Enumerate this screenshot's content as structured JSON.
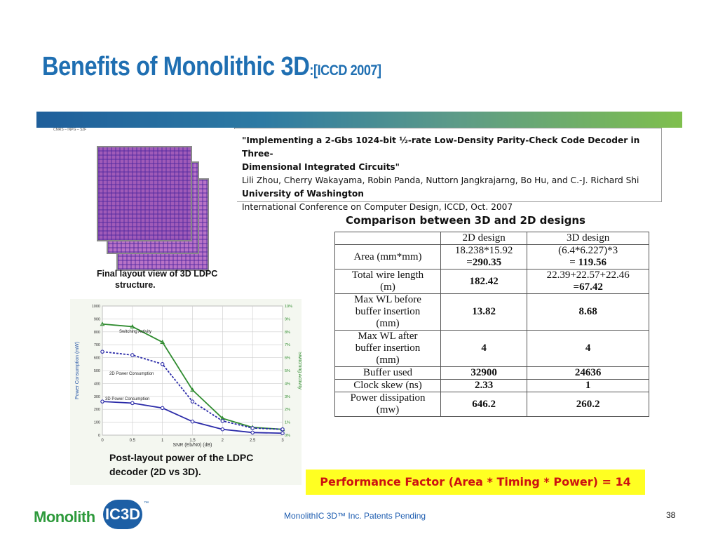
{
  "slide": {
    "title_main": "Benefits of Monolithic 3D",
    "title_suffix": ":[ICCD 2007]",
    "tiny_text": "CMRS – INPG – S2F",
    "footer": "MonolithIC 3D™ Inc. Patents Pending",
    "page_number": "38",
    "logo_word": "Monolith",
    "logo_badge": "IC3D",
    "logo_tm": "™"
  },
  "paper": {
    "line1": "\"Implementing a 2-Gbs 1024-bit ½-rate Low-Density Parity-Check Code Decoder in Three-",
    "line2": "Dimensional Integrated Circuits\"",
    "authors": "Lili Zhou, Cherry Wakayama, Robin Panda, Nuttorn Jangkrajarng, Bo Hu, and C.-J. Richard Shi",
    "affiliation": "University of Washington",
    "venue": "International Conference on Computer Design, ICCD, Oct. 2007"
  },
  "layout_caption": {
    "line1": "Final layout view of 3D LDPC",
    "line2": "structure."
  },
  "plot_caption": {
    "line1": "Post-layout power of the LDPC",
    "line2": "decoder (2D vs 3D)."
  },
  "table": {
    "title": "Comparison between 3D and 2D designs",
    "headers": [
      "",
      "2D design",
      "3D design"
    ],
    "rows": [
      {
        "label": [
          "Area (mm*mm)"
        ],
        "d2": [
          "18.238*15.92",
          "=290.35"
        ],
        "d3": [
          "(6.4*6.227)*3",
          "= 119.56"
        ]
      },
      {
        "label": [
          "Total wire length",
          "(m)"
        ],
        "d2": [
          "182.42"
        ],
        "d3": [
          "22.39+22.57+22.46",
          "=67.42"
        ]
      },
      {
        "label": [
          "Max WL before",
          "buffer insertion",
          "(mm)"
        ],
        "d2": [
          "13.82"
        ],
        "d3": [
          "8.68"
        ]
      },
      {
        "label": [
          "Max WL after",
          "buffer insertion",
          "(mm)"
        ],
        "d2": [
          "4"
        ],
        "d3": [
          "4"
        ]
      },
      {
        "label": [
          "Buffer used"
        ],
        "d2": [
          "32900"
        ],
        "d3": [
          "24636"
        ]
      },
      {
        "label": [
          "Clock skew (ns)"
        ],
        "d2": [
          "2.33"
        ],
        "d3": [
          "1"
        ]
      },
      {
        "label": [
          "Power dissipation",
          "(mw)"
        ],
        "d2": [
          "646.2"
        ],
        "d3": [
          "260.2"
        ]
      }
    ]
  },
  "performance_factor": "Performance Factor (Area * Timing * Power)  =  14",
  "chart_data": {
    "type": "line",
    "xlabel": "SNR (Eb/N0) (dB)",
    "ylabel": "Power Consumption (mW)",
    "y2label": "Switching Activity",
    "xlim": [
      0,
      3
    ],
    "ylim": [
      0,
      1000
    ],
    "y2lim": [
      0,
      10
    ],
    "x_ticks": [
      "0",
      "0.5",
      "1",
      "1.5",
      "2",
      "2.5",
      "3"
    ],
    "y_ticks": [
      "0",
      "100",
      "200",
      "300",
      "400",
      "500",
      "600",
      "700",
      "800",
      "900",
      "1000"
    ],
    "y2_ticks": [
      "0%",
      "1%",
      "2%",
      "3%",
      "4%",
      "5%",
      "6%",
      "7%",
      "8%",
      "9%",
      "10%"
    ],
    "grid": true,
    "series": [
      {
        "name": "Switching Activity",
        "axis": "right",
        "color": "#2e8b2e",
        "x": [
          0,
          0.5,
          1,
          1.5,
          2,
          2.5,
          3
        ],
        "y": [
          8.6,
          8.4,
          7.2,
          3.5,
          1.3,
          0.6,
          0.45
        ]
      },
      {
        "name": "2D Power Consumption",
        "axis": "left",
        "color": "#2a2aa8",
        "dashed": true,
        "x": [
          0,
          0.5,
          1,
          1.5,
          2,
          2.5,
          3
        ],
        "y": [
          646,
          620,
          550,
          260,
          110,
          55,
          45
        ]
      },
      {
        "name": "3D Power Consumption",
        "axis": "left",
        "color": "#2a2aa8",
        "dashed": false,
        "x": [
          0,
          0.5,
          1,
          1.5,
          2,
          2.5,
          3
        ],
        "y": [
          260,
          248,
          210,
          105,
          45,
          20,
          15
        ]
      }
    ]
  }
}
